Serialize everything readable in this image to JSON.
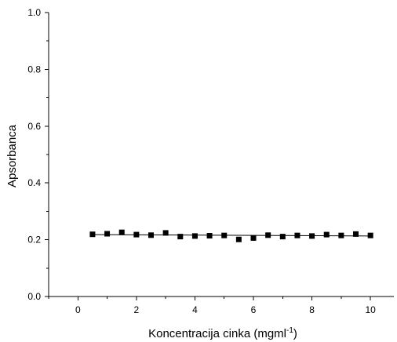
{
  "chart_data": {
    "type": "scatter",
    "xlabel": "Koncentracija cinka (mgml",
    "xlabel_sup": "-1",
    "xlabel_end": ")",
    "ylabel": "Apsorbanca",
    "xlim": [
      -1,
      10.8
    ],
    "ylim": [
      0,
      1.0
    ],
    "xticks": [
      0,
      2,
      4,
      6,
      8,
      10
    ],
    "xtick_labels": [
      "0",
      "2",
      "4",
      "6",
      "8",
      "10"
    ],
    "yticks": [
      0.0,
      0.2,
      0.4,
      0.6,
      0.8,
      1.0
    ],
    "ytick_labels": [
      "0.0",
      "0.2",
      "0.4",
      "0.6",
      "0.8",
      "1.0"
    ],
    "grid": false,
    "legend": "none",
    "marker": "square",
    "marker_color": "#000000",
    "trend_line_color": "#000000",
    "series": [
      {
        "x": [
          0.5,
          1.0,
          1.5,
          2.0,
          2.5,
          3.0,
          3.5,
          4.0,
          4.5,
          5.0,
          5.5,
          6.0,
          6.5,
          7.0,
          7.5,
          8.0,
          8.5,
          9.0,
          9.5,
          10.0
        ],
        "y": [
          0.219,
          0.221,
          0.226,
          0.218,
          0.216,
          0.224,
          0.211,
          0.213,
          0.214,
          0.215,
          0.201,
          0.206,
          0.216,
          0.211,
          0.215,
          0.213,
          0.218,
          0.215,
          0.22,
          0.215
        ]
      }
    ],
    "trend_line": {
      "x": [
        0.5,
        10.0
      ],
      "y": [
        0.218,
        0.213
      ]
    }
  }
}
